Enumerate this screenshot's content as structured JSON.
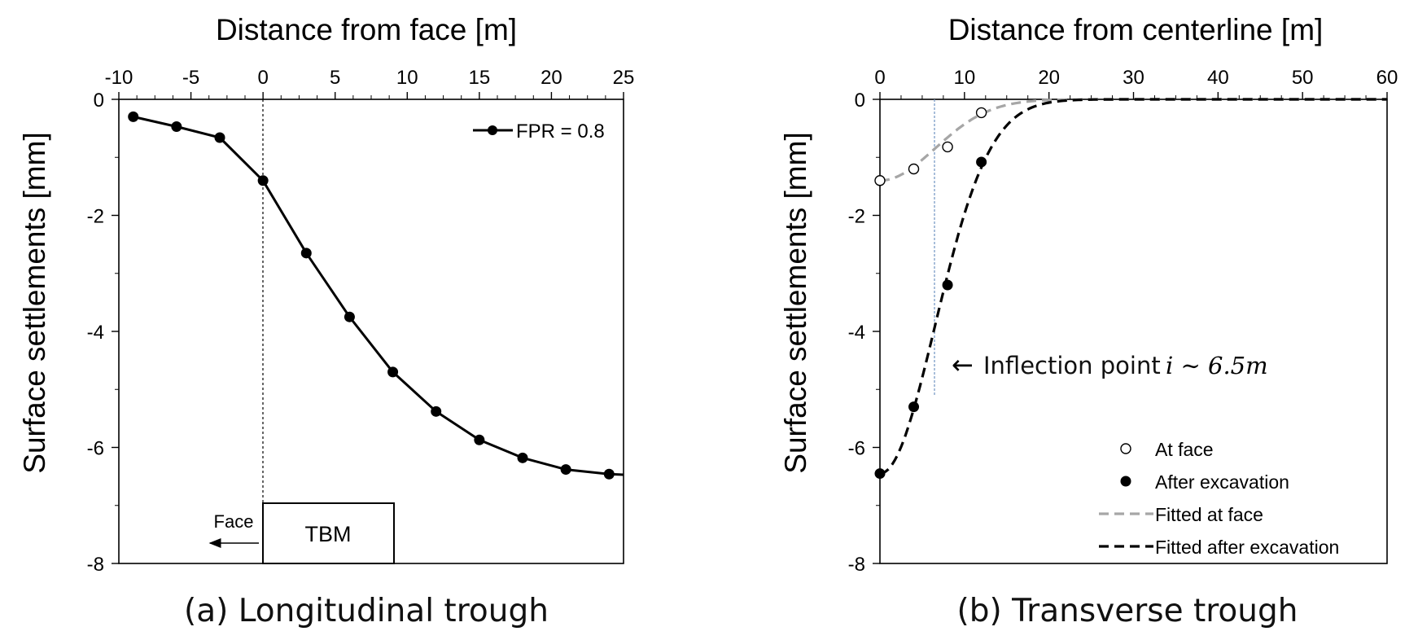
{
  "chart_data": [
    {
      "type": "line",
      "caption": "(a) Longitudinal trough",
      "xlabel": "Distance from face [m]",
      "ylabel": "Surface settlements [mm]",
      "xlim": [
        -10,
        25
      ],
      "ylim": [
        -8,
        0
      ],
      "xticks": [
        "-10",
        "-5",
        "0",
        "5",
        "10",
        "15",
        "20",
        "25"
      ],
      "yticks": [
        "0",
        "-2",
        "-4",
        "-6",
        "-8"
      ],
      "x_axis_position": "top",
      "legend_position": "top-right",
      "grid": false,
      "series": [
        {
          "name": "FPR = 0.8",
          "x": [
            -9,
            -6,
            -3,
            0,
            3,
            6,
            9,
            12,
            15,
            18,
            21,
            24,
            25
          ],
          "y": [
            -0.3,
            -0.47,
            -0.66,
            -1.4,
            -2.65,
            -3.75,
            -4.7,
            -5.38,
            -5.87,
            -6.18,
            -6.38,
            -6.46,
            -6.47
          ],
          "markers_at": [
            -9,
            -6,
            -3,
            0,
            3,
            6,
            9,
            12,
            15,
            18,
            21,
            24
          ]
        }
      ],
      "annotations": {
        "face_line_x": 0,
        "tbm_label": "TBM",
        "face_label": "Face"
      }
    },
    {
      "type": "scatter",
      "caption": "(b) Transverse trough",
      "xlabel": "Distance from centerline [m]",
      "ylabel": "Surface settlements [mm]",
      "xlim": [
        0,
        60
      ],
      "ylim": [
        -8,
        0
      ],
      "xticks": [
        "0",
        "10",
        "20",
        "30",
        "40",
        "50",
        "60"
      ],
      "yticks": [
        "0",
        "-2",
        "-4",
        "-6",
        "-8"
      ],
      "x_axis_position": "top",
      "legend_position": "bottom-right",
      "grid": false,
      "series": [
        {
          "name": "At face",
          "style": "open-circle",
          "x": [
            0,
            4,
            8,
            12
          ],
          "y": [
            -1.4,
            -1.2,
            -0.82,
            -0.23
          ]
        },
        {
          "name": "After excavation",
          "style": "filled-circle",
          "x": [
            0,
            4,
            8,
            12
          ],
          "y": [
            -6.45,
            -5.3,
            -3.2,
            -1.08
          ]
        },
        {
          "name": "Fitted at face",
          "style": "dashed-gray",
          "smax": -1.4,
          "i": 6.5
        },
        {
          "name": "Fitted after excavation",
          "style": "dashed-black",
          "smax": -6.45,
          "i": 6.5
        }
      ],
      "annotations": {
        "inflection_x": 6.5,
        "inflection_text": "Inflection point",
        "inflection_math": "i ∼ 6.5m",
        "arrow": "←"
      }
    }
  ]
}
